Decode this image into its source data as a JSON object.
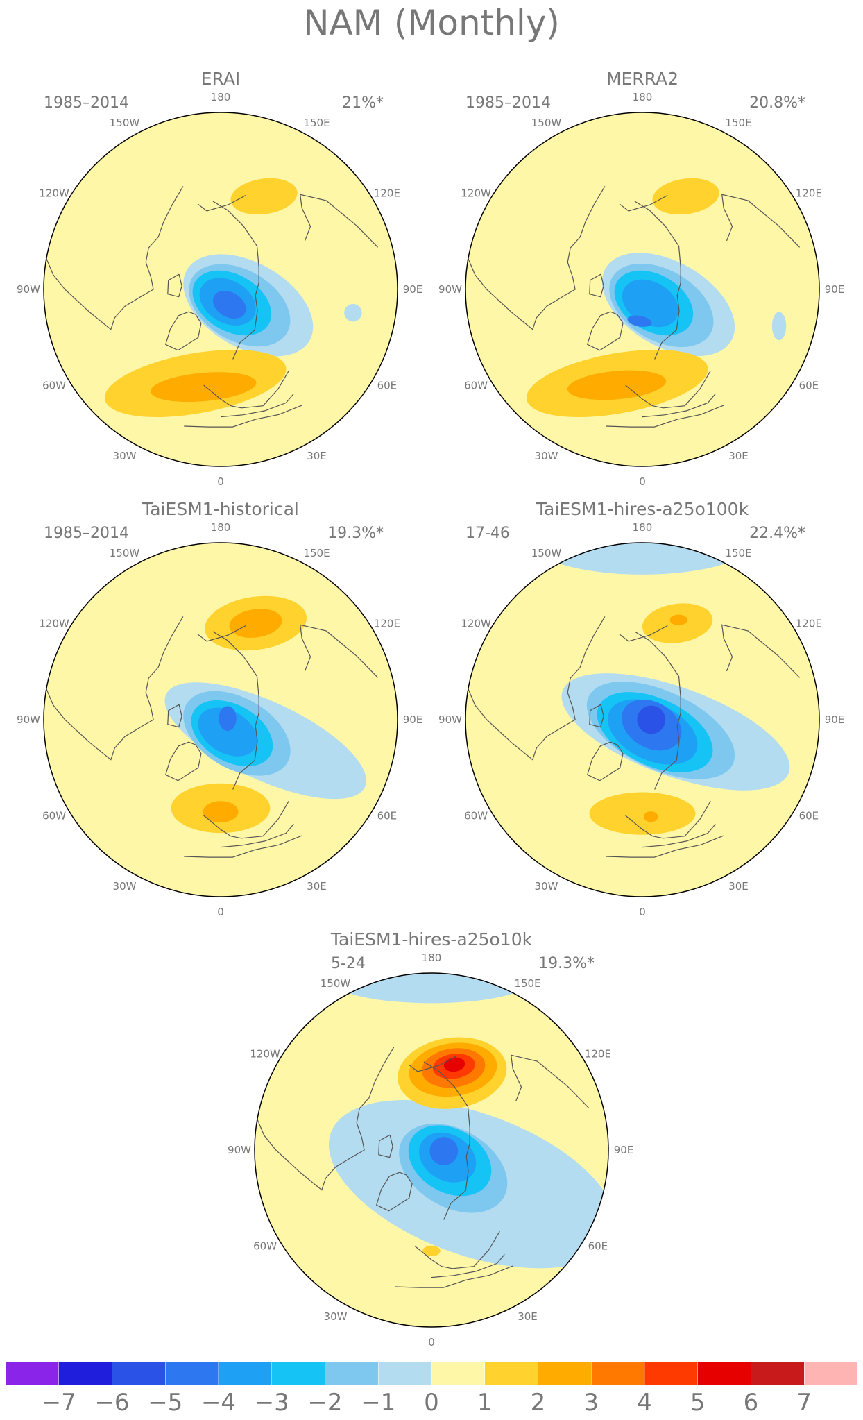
{
  "figure": {
    "title": "NAM (Monthly)",
    "colors": {
      "neutral": "#fff7a8",
      "neg": [
        "#b4dcf0",
        "#7ec8f0",
        "#16c3f5",
        "#1ea0f5",
        "#2d78f0",
        "#2b52e6",
        "#1e1edc",
        "#8a24e8"
      ],
      "pos": [
        "#ffd22e",
        "#ffab00",
        "#ff7800",
        "#ff3a00",
        "#e60000",
        "#c81a1a",
        "#ffb4b4"
      ],
      "coast": "#555555",
      "border": "#000000"
    }
  },
  "longitude_labels": [
    "180",
    "150E",
    "120E",
    "90E",
    "60E",
    "30E",
    "0",
    "30W",
    "60W",
    "90W",
    "120W",
    "150W"
  ],
  "panels": [
    {
      "title": "ERAI",
      "period": "1985–2014",
      "variance": "21%*",
      "fields": [
        {
          "sign": "neg",
          "level": 1,
          "lon": 60,
          "r": 0.18,
          "a": 0.4,
          "b": 0.24,
          "rot": 30
        },
        {
          "sign": "neg",
          "level": 2,
          "lon": 50,
          "r": 0.14,
          "a": 0.31,
          "b": 0.2,
          "rot": 30
        },
        {
          "sign": "neg",
          "level": 3,
          "lon": 40,
          "r": 0.1,
          "a": 0.24,
          "b": 0.16,
          "rot": 30
        },
        {
          "sign": "neg",
          "level": 4,
          "lon": 30,
          "r": 0.08,
          "a": 0.17,
          "b": 0.12,
          "rot": 30
        },
        {
          "sign": "neg",
          "level": 5,
          "lon": 30,
          "r": 0.1,
          "a": 0.1,
          "b": 0.07,
          "rot": 30
        },
        {
          "sign": "pos",
          "level": 1,
          "lon": 155,
          "r": 0.58,
          "a": 0.19,
          "b": 0.1,
          "rot": -8
        },
        {
          "sign": "pos",
          "level": 1,
          "lon": -15,
          "r": 0.55,
          "a": 0.52,
          "b": 0.17,
          "rot": -10
        },
        {
          "sign": "pos",
          "level": 2,
          "lon": -10,
          "r": 0.56,
          "a": 0.3,
          "b": 0.08,
          "rot": -5
        },
        {
          "sign": "neg",
          "level": 1,
          "lon": 80,
          "r": 0.76,
          "a": 0.05,
          "b": 0.05,
          "rot": 0
        }
      ]
    },
    {
      "title": "MERRA2",
      "period": "1985–2014",
      "variance": "20.8%*",
      "fields": [
        {
          "sign": "neg",
          "level": 1,
          "lon": 60,
          "r": 0.17,
          "a": 0.41,
          "b": 0.24,
          "rot": 30
        },
        {
          "sign": "neg",
          "level": 2,
          "lon": 50,
          "r": 0.14,
          "a": 0.32,
          "b": 0.2,
          "rot": 30
        },
        {
          "sign": "neg",
          "level": 3,
          "lon": 40,
          "r": 0.1,
          "a": 0.24,
          "b": 0.16,
          "rot": 30
        },
        {
          "sign": "neg",
          "level": 4,
          "lon": 30,
          "r": 0.09,
          "a": 0.17,
          "b": 0.12,
          "rot": 30
        },
        {
          "sign": "neg",
          "level": 5,
          "lon": -5,
          "r": 0.18,
          "a": 0.07,
          "b": 0.03,
          "rot": 10
        },
        {
          "sign": "pos",
          "level": 1,
          "lon": 155,
          "r": 0.58,
          "a": 0.19,
          "b": 0.1,
          "rot": -8
        },
        {
          "sign": "pos",
          "level": 1,
          "lon": -15,
          "r": 0.55,
          "a": 0.52,
          "b": 0.17,
          "rot": -10
        },
        {
          "sign": "pos",
          "level": 2,
          "lon": -15,
          "r": 0.56,
          "a": 0.28,
          "b": 0.08,
          "rot": -5
        },
        {
          "sign": "neg",
          "level": 1,
          "lon": 75,
          "r": 0.8,
          "a": 0.04,
          "b": 0.08,
          "rot": 0
        }
      ]
    },
    {
      "title": "TaiESM1-historical",
      "period": "1985–2014",
      "variance": "19.3%*",
      "fields": [
        {
          "sign": "neg",
          "level": 1,
          "lon": 65,
          "r": 0.28,
          "a": 0.62,
          "b": 0.22,
          "rot": 25
        },
        {
          "sign": "neg",
          "level": 2,
          "lon": 50,
          "r": 0.12,
          "a": 0.33,
          "b": 0.2,
          "rot": 30
        },
        {
          "sign": "neg",
          "level": 3,
          "lon": 40,
          "r": 0.1,
          "a": 0.25,
          "b": 0.16,
          "rot": 30
        },
        {
          "sign": "neg",
          "level": 4,
          "lon": 30,
          "r": 0.08,
          "a": 0.18,
          "b": 0.12,
          "rot": 30
        },
        {
          "sign": "neg",
          "level": 5,
          "lon": 100,
          "r": 0.04,
          "a": 0.05,
          "b": 0.07,
          "rot": 0
        },
        {
          "sign": "pos",
          "level": 1,
          "lon": 160,
          "r": 0.58,
          "a": 0.29,
          "b": 0.15,
          "rot": -8
        },
        {
          "sign": "pos",
          "level": 2,
          "lon": 160,
          "r": 0.58,
          "a": 0.15,
          "b": 0.08,
          "rot": -8
        },
        {
          "sign": "pos",
          "level": 1,
          "lon": 0,
          "r": 0.5,
          "a": 0.28,
          "b": 0.14,
          "rot": 0
        },
        {
          "sign": "pos",
          "level": 2,
          "lon": 0,
          "r": 0.52,
          "a": 0.1,
          "b": 0.06,
          "rot": 0
        }
      ]
    },
    {
      "title": "TaiESM1-hires-a25o100k",
      "period": "17-46",
      "variance": "22.4%*",
      "fields": [
        {
          "sign": "neg",
          "level": 1,
          "lon": 180,
          "r": 1.0,
          "a": 0.62,
          "b": 0.18,
          "rot": 0
        },
        {
          "sign": "neg",
          "level": 1,
          "lon": 70,
          "r": 0.2,
          "a": 0.68,
          "b": 0.25,
          "rot": 20
        },
        {
          "sign": "neg",
          "level": 2,
          "lon": 60,
          "r": 0.12,
          "a": 0.45,
          "b": 0.22,
          "rot": 25
        },
        {
          "sign": "neg",
          "level": 3,
          "lon": 45,
          "r": 0.1,
          "a": 0.35,
          "b": 0.19,
          "rot": 25
        },
        {
          "sign": "neg",
          "level": 4,
          "lon": 40,
          "r": 0.09,
          "a": 0.27,
          "b": 0.16,
          "rot": 25
        },
        {
          "sign": "neg",
          "level": 5,
          "lon": 60,
          "r": 0.06,
          "a": 0.18,
          "b": 0.13,
          "rot": 30
        },
        {
          "sign": "neg",
          "level": 6,
          "lon": 90,
          "r": 0.05,
          "a": 0.08,
          "b": 0.08,
          "rot": 0
        },
        {
          "sign": "pos",
          "level": 1,
          "lon": 160,
          "r": 0.58,
          "a": 0.2,
          "b": 0.11,
          "rot": -8
        },
        {
          "sign": "pos",
          "level": 2,
          "lon": 160,
          "r": 0.6,
          "a": 0.05,
          "b": 0.03,
          "rot": 0
        },
        {
          "sign": "pos",
          "level": 1,
          "lon": 0,
          "r": 0.53,
          "a": 0.3,
          "b": 0.12,
          "rot": 0
        },
        {
          "sign": "pos",
          "level": 2,
          "lon": 5,
          "r": 0.55,
          "a": 0.04,
          "b": 0.03,
          "rot": 0
        }
      ]
    },
    {
      "title": "TaiESM1-hires-a25o10k",
      "period": "5-24",
      "variance": "19.3%*",
      "fields": [
        {
          "sign": "neg",
          "level": 1,
          "lon": 180,
          "r": 0.95,
          "a": 0.55,
          "b": 0.12,
          "rot": 0
        },
        {
          "sign": "neg",
          "level": 1,
          "lon": 50,
          "r": 0.3,
          "a": 0.85,
          "b": 0.4,
          "rot": 20
        },
        {
          "sign": "neg",
          "level": 2,
          "lon": 50,
          "r": 0.16,
          "a": 0.33,
          "b": 0.22,
          "rot": 30
        },
        {
          "sign": "neg",
          "level": 3,
          "lon": 60,
          "r": 0.12,
          "a": 0.25,
          "b": 0.18,
          "rot": 30
        },
        {
          "sign": "neg",
          "level": 4,
          "lon": 65,
          "r": 0.1,
          "a": 0.17,
          "b": 0.13,
          "rot": 30
        },
        {
          "sign": "neg",
          "level": 5,
          "lon": 85,
          "r": 0.07,
          "a": 0.08,
          "b": 0.08,
          "rot": 0
        },
        {
          "sign": "pos",
          "level": 1,
          "lon": 165,
          "r": 0.45,
          "a": 0.31,
          "b": 0.2,
          "rot": -8
        },
        {
          "sign": "pos",
          "level": 2,
          "lon": 165,
          "r": 0.47,
          "a": 0.25,
          "b": 0.15,
          "rot": -8
        },
        {
          "sign": "pos",
          "level": 3,
          "lon": 165,
          "r": 0.48,
          "a": 0.18,
          "b": 0.11,
          "rot": -8
        },
        {
          "sign": "pos",
          "level": 4,
          "lon": 165,
          "r": 0.49,
          "a": 0.12,
          "b": 0.07,
          "rot": -8
        },
        {
          "sign": "pos",
          "level": 5,
          "lon": 165,
          "r": 0.5,
          "a": 0.06,
          "b": 0.04,
          "rot": -8
        },
        {
          "sign": "pos",
          "level": 1,
          "lon": 0,
          "r": 0.57,
          "a": 0.05,
          "b": 0.03,
          "rot": 0
        }
      ]
    }
  ],
  "colorbar": {
    "labels": [
      "−7",
      "−6",
      "−5",
      "−4",
      "−3",
      "−2",
      "−1",
      "0",
      "1",
      "2",
      "3",
      "4",
      "5",
      "6",
      "7"
    ],
    "colors": [
      "#8a24e8",
      "#1e1edc",
      "#2b52e6",
      "#2d78f0",
      "#1ea0f5",
      "#16c3f5",
      "#7ec8f0",
      "#b4dcf0",
      "#fff7a8",
      "#ffd22e",
      "#ffab00",
      "#ff7800",
      "#ff3a00",
      "#e60000",
      "#c81a1a",
      "#ffb4b4"
    ]
  }
}
